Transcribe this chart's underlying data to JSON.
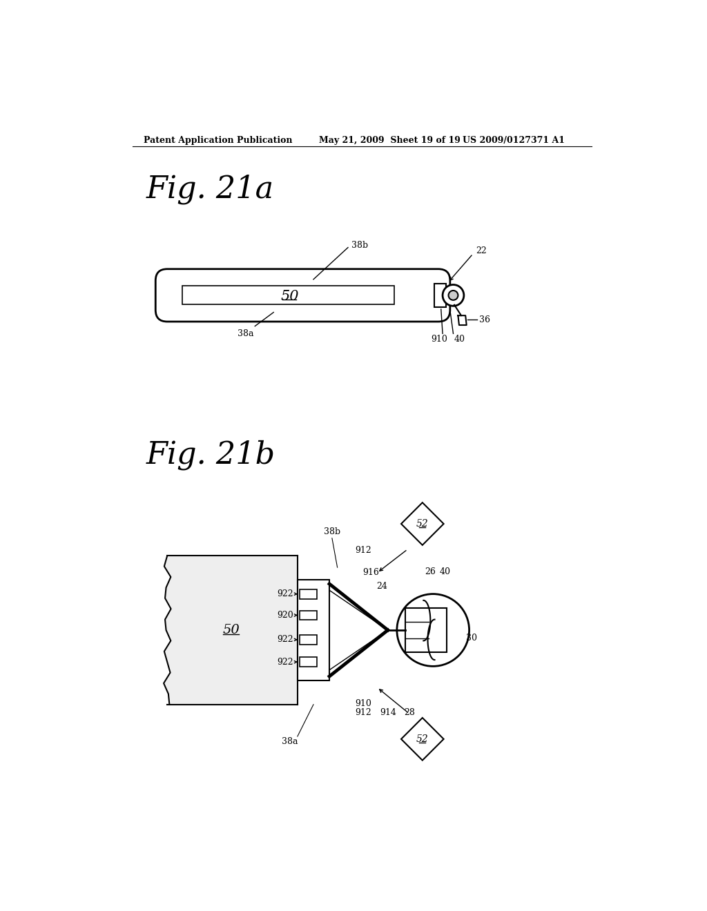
{
  "background_color": "#ffffff",
  "header_left": "Patent Application Publication",
  "header_center": "May 21, 2009  Sheet 19 of 19",
  "header_right": "US 2009/0127371 A1",
  "fig_a_label": "Fig. 21a",
  "fig_b_label": "Fig. 21b"
}
